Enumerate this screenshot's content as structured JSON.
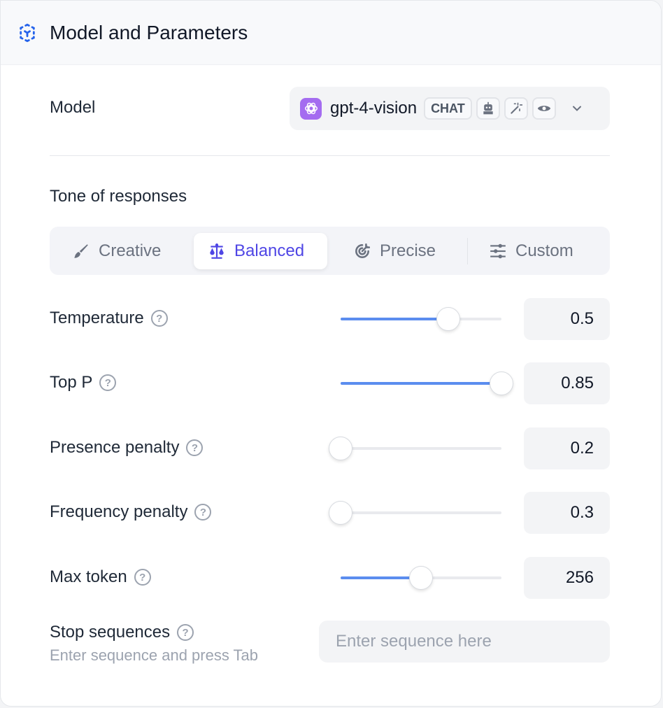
{
  "header": {
    "title": "Model and Parameters",
    "icon": "cube-dashed-icon",
    "accent": "#2563eb"
  },
  "model": {
    "label": "Model",
    "selected": "gpt-4-vision",
    "tag": "CHAT",
    "capability_icons": [
      "robot-icon",
      "magic-wand-icon",
      "eye-icon"
    ],
    "logo_color": "#a46cf0"
  },
  "tone": {
    "label": "Tone of responses",
    "tabs": [
      {
        "label": "Creative",
        "icon": "brush-icon"
      },
      {
        "label": "Balanced",
        "icon": "scale-icon",
        "active": true
      },
      {
        "label": "Precise",
        "icon": "target-icon"
      },
      {
        "label": "Custom",
        "icon": "sliders-icon"
      }
    ],
    "active_color": "#4f46e5"
  },
  "params": [
    {
      "label": "Temperature",
      "value": "0.5",
      "slider_fraction": 0.67
    },
    {
      "label": "Top P",
      "value": "0.85",
      "slider_fraction": 1.0
    },
    {
      "label": "Presence penalty",
      "value": "0.2",
      "slider_fraction": 0.0
    },
    {
      "label": "Frequency penalty",
      "value": "0.3",
      "slider_fraction": 0.0
    },
    {
      "label": "Max token",
      "value": "256",
      "slider_fraction": 0.5
    }
  ],
  "stop": {
    "label": "Stop sequences",
    "hint": "Enter sequence and press Tab",
    "placeholder": "Enter sequence here"
  },
  "help_glyph": "?"
}
